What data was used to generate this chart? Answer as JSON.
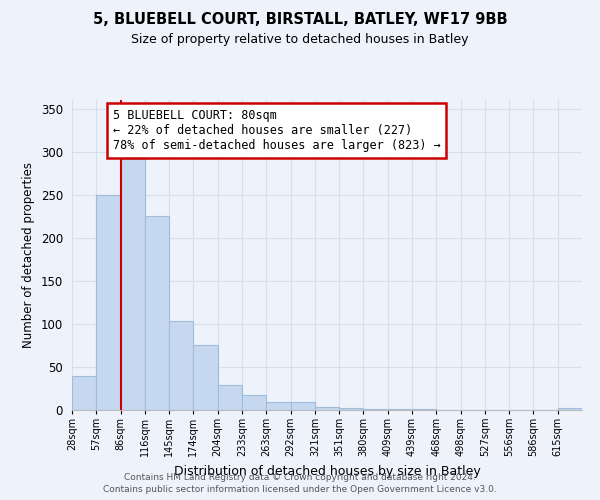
{
  "title": "5, BLUEBELL COURT, BIRSTALL, BATLEY, WF17 9BB",
  "subtitle": "Size of property relative to detached houses in Batley",
  "xlabel": "Distribution of detached houses by size in Batley",
  "ylabel": "Number of detached properties",
  "footer_lines": [
    "Contains HM Land Registry data © Crown copyright and database right 2024.",
    "Contains public sector information licensed under the Open Government Licence v3.0."
  ],
  "bin_labels": [
    "28sqm",
    "57sqm",
    "86sqm",
    "116sqm",
    "145sqm",
    "174sqm",
    "204sqm",
    "233sqm",
    "263sqm",
    "292sqm",
    "321sqm",
    "351sqm",
    "380sqm",
    "409sqm",
    "439sqm",
    "468sqm",
    "498sqm",
    "527sqm",
    "556sqm",
    "586sqm",
    "615sqm"
  ],
  "bar_values": [
    40,
    250,
    291,
    225,
    103,
    76,
    29,
    18,
    9,
    9,
    4,
    2,
    1,
    1,
    1,
    0,
    0,
    0,
    0,
    0,
    2
  ],
  "bar_color": "#c5d8f0",
  "bar_edge_color": "#a0bcd8",
  "ylim": [
    0,
    360
  ],
  "yticks": [
    0,
    50,
    100,
    150,
    200,
    250,
    300,
    350
  ],
  "red_line_x": 2.0,
  "annotation_text_line1": "5 BLUEBELL COURT: 80sqm",
  "annotation_text_line2": "← 22% of detached houses are smaller (227)",
  "annotation_text_line3": "78% of semi-detached houses are larger (823) →",
  "annotation_box_color": "#ffffff",
  "annotation_border_color": "#cc0000",
  "grid_color": "#d4dff0",
  "background_color": "#eef2fa"
}
